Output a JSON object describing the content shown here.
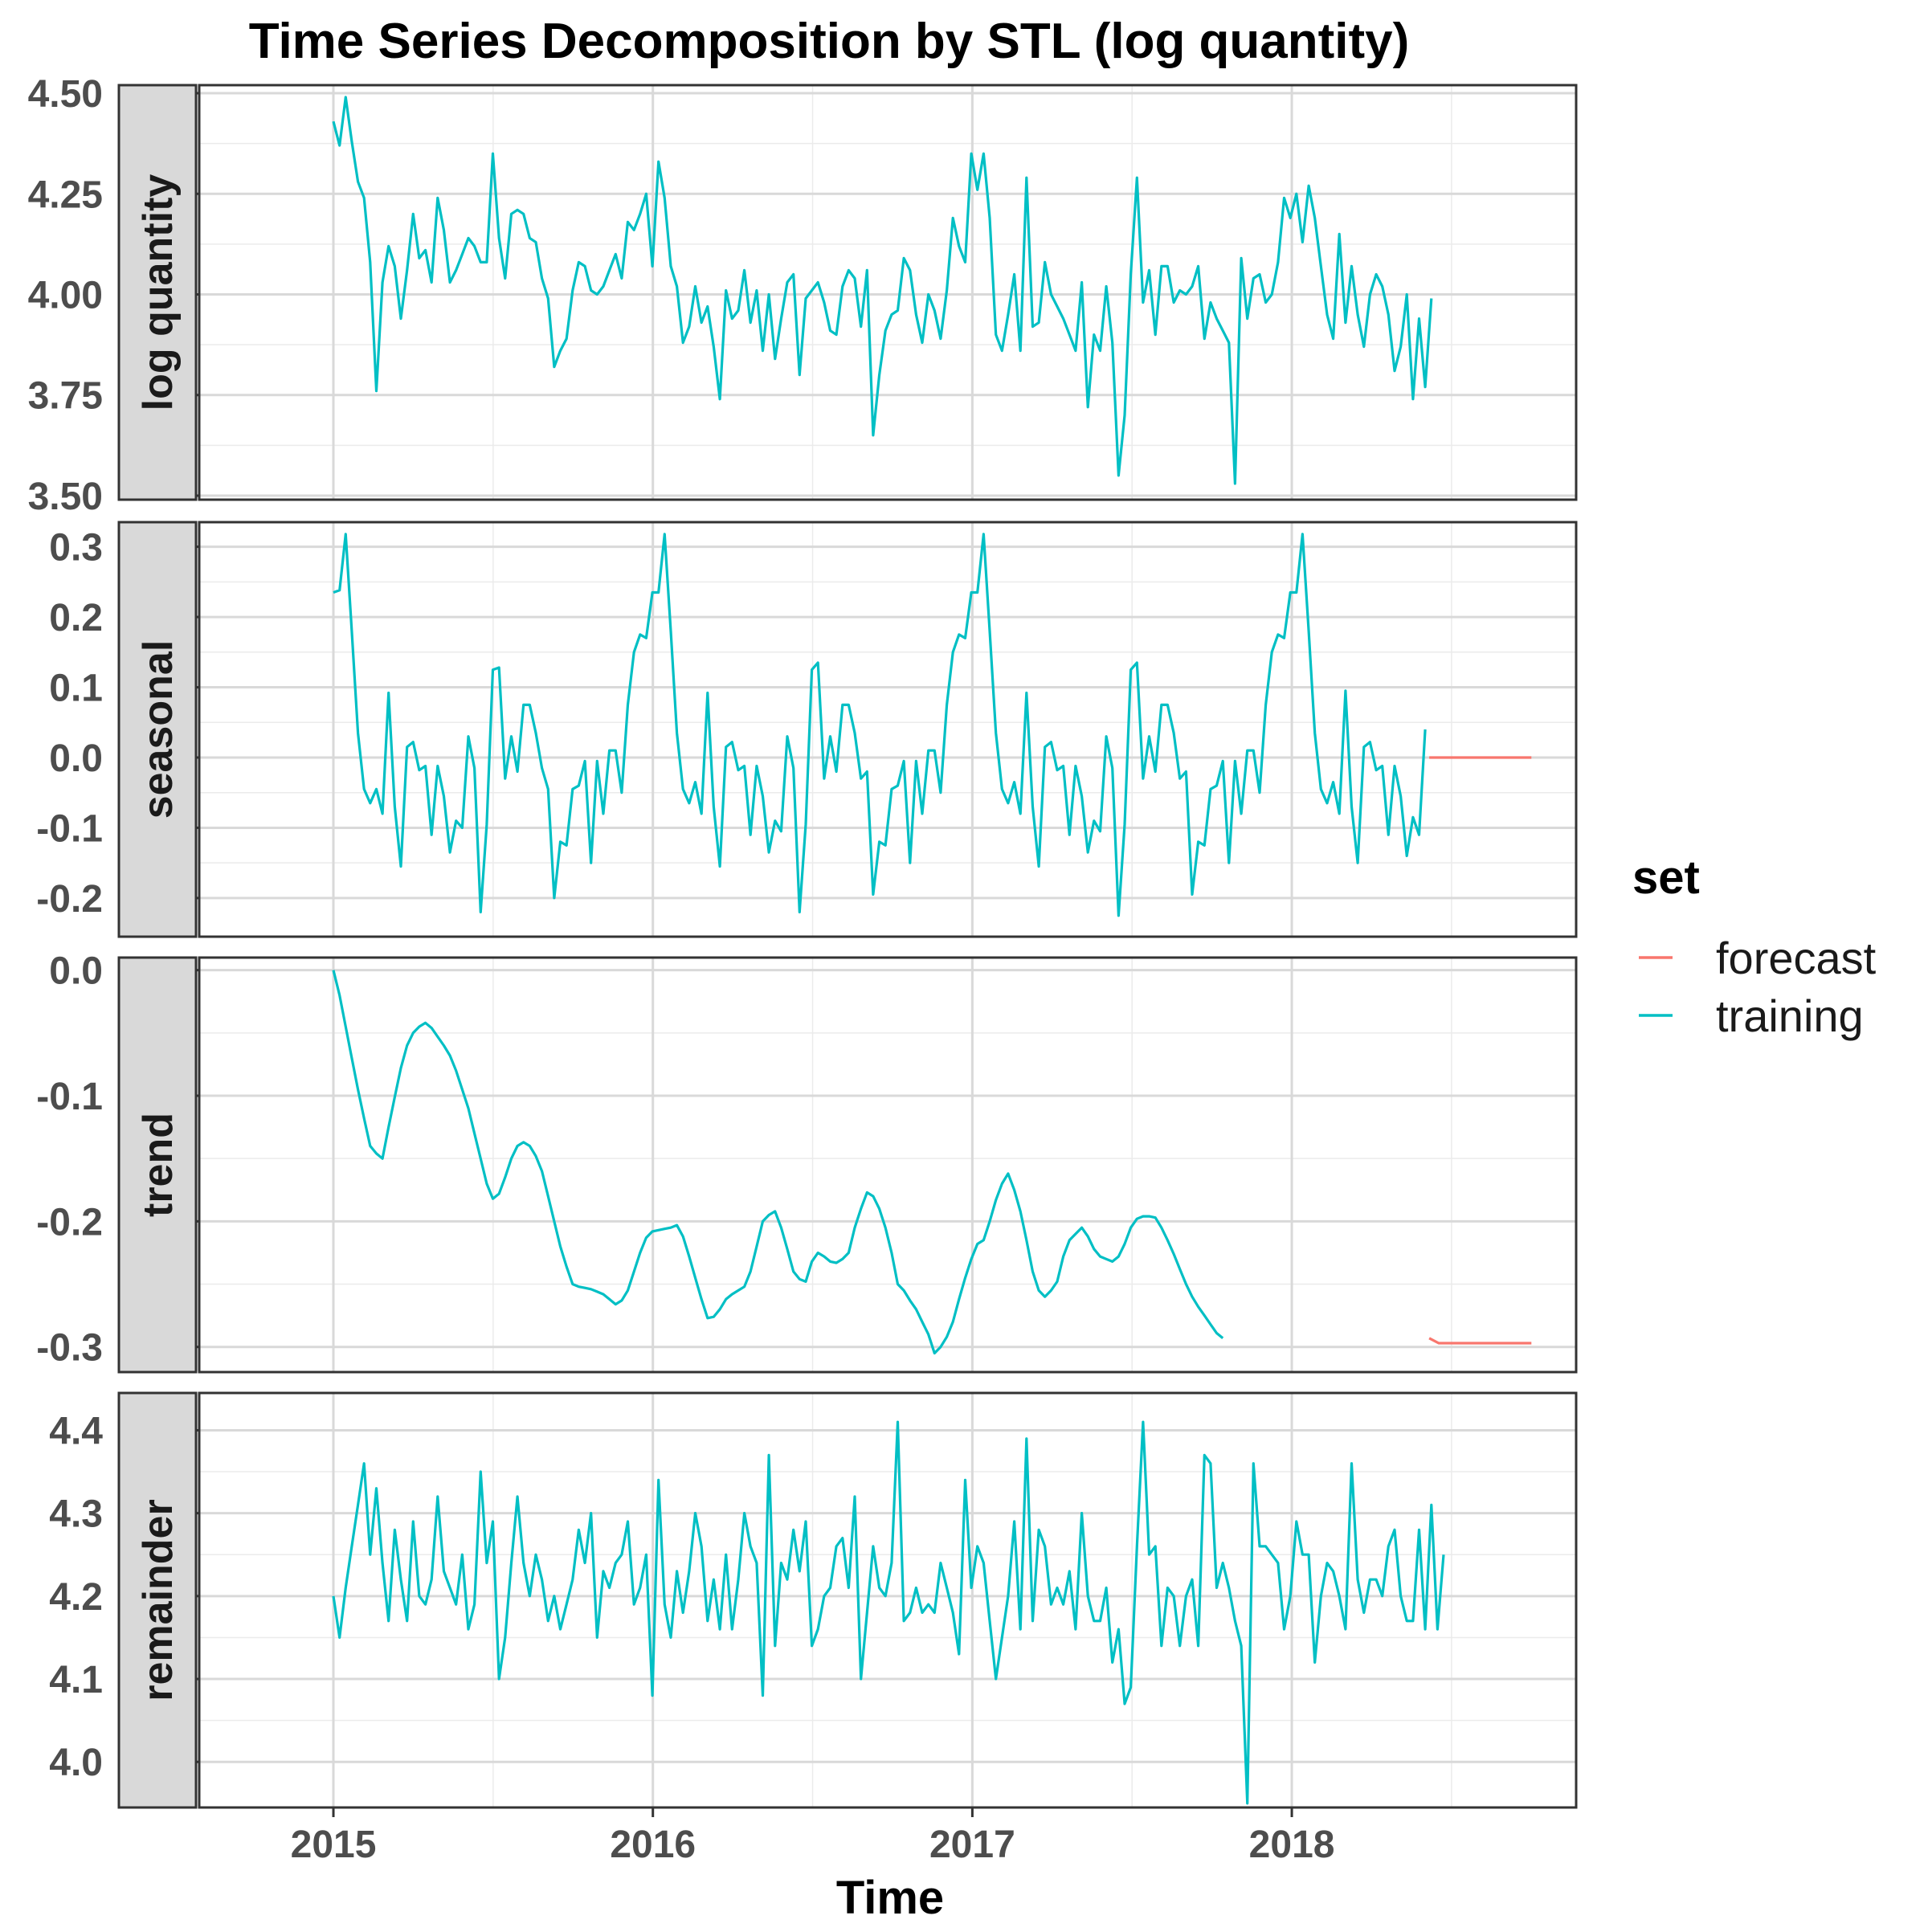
{
  "chart_data": {
    "type": "line",
    "title": "Time Series Decomposition by STL (log quantity)",
    "xlabel": "Time",
    "ylabel": "",
    "x_ticks": [
      "2015",
      "2016",
      "2017",
      "2018"
    ],
    "x_range": [
      2014.58,
      2018.89
    ],
    "grid": true,
    "legend": {
      "title": "set",
      "placement": "right",
      "entries": [
        {
          "name": "forecast",
          "color": "#F8766D"
        },
        {
          "name": "training",
          "color": "#00BFC4"
        }
      ]
    },
    "series_colors": {
      "training": "#00BFC4",
      "forecast": "#F8766D"
    },
    "panels": [
      {
        "name": "log quantity",
        "ylim": [
          3.49,
          4.52
        ],
        "y_ticks": [
          "3.50",
          "3.75",
          "4.00",
          "4.25",
          "4.50"
        ],
        "y_tick_values": [
          3.5,
          3.75,
          4.0,
          4.25,
          4.5
        ],
        "training": {
          "x_start": 2015.0,
          "x_step": 0.0192,
          "values": [
            4.43,
            4.37,
            4.49,
            4.38,
            4.28,
            4.24,
            4.08,
            3.76,
            4.03,
            4.12,
            4.07,
            3.94,
            4.06,
            4.2,
            4.09,
            4.11,
            4.03,
            4.24,
            4.16,
            4.03,
            4.06,
            4.1,
            4.14,
            4.12,
            4.08,
            4.08,
            4.35,
            4.14,
            4.04,
            4.2,
            4.21,
            4.2,
            4.14,
            4.13,
            4.04,
            3.99,
            3.82,
            3.86,
            3.89,
            4.01,
            4.08,
            4.07,
            4.01,
            4.0,
            4.02,
            4.06,
            4.1,
            4.04,
            4.18,
            4.16,
            4.2,
            4.25,
            4.07,
            4.33,
            4.24,
            4.07,
            4.02,
            3.88,
            3.92,
            4.02,
            3.93,
            3.97,
            3.87,
            3.74,
            4.01,
            3.94,
            3.96,
            4.06,
            3.93,
            4.01,
            3.86,
            4.0,
            3.84,
            3.94,
            4.03,
            4.05,
            3.8,
            3.99,
            4.01,
            4.03,
            3.98,
            3.91,
            3.9,
            4.02,
            4.06,
            4.04,
            3.92,
            4.06,
            3.65,
            3.8,
            3.91,
            3.95,
            3.96,
            4.09,
            4.06,
            3.95,
            3.88,
            4.0,
            3.96,
            3.89,
            4.01,
            4.19,
            4.12,
            4.08,
            4.35,
            4.26,
            4.35,
            4.19,
            3.9,
            3.86,
            3.95,
            4.05,
            3.86,
            4.29,
            3.92,
            3.93,
            4.08,
            4.0,
            3.97,
            3.94,
            3.9,
            3.86,
            4.03,
            3.72,
            3.9,
            3.86,
            4.02,
            3.88,
            3.55,
            3.7,
            4.05,
            4.29,
            3.98,
            4.06,
            3.9,
            4.07,
            4.07,
            3.98,
            4.01,
            4.0,
            4.02,
            4.07,
            3.89,
            3.98,
            3.94,
            3.91,
            3.88,
            3.53,
            4.09,
            3.94,
            4.04,
            4.05,
            3.98,
            4.0,
            4.08,
            4.24,
            4.19,
            4.25,
            4.13,
            4.27,
            4.19,
            4.07,
            3.95,
            3.89,
            4.15,
            3.93,
            4.07,
            3.95,
            3.87,
            4.0,
            4.05,
            4.02,
            3.95,
            3.81,
            3.87,
            4.0,
            3.74,
            3.94,
            3.77,
            3.99
          ]
        },
        "forecast": null
      },
      {
        "name": "seasonal",
        "ylim": [
          -0.255,
          0.335
        ],
        "y_ticks": [
          "-0.2",
          "-0.1",
          "0.0",
          "0.1",
          "0.2",
          "0.3"
        ],
        "y_tick_values": [
          -0.2,
          -0.1,
          0.0,
          0.1,
          0.2,
          0.3
        ],
        "training": {
          "x_start": 2015.0,
          "x_step": 0.0192,
          "values": [
            0.235,
            0.238,
            0.318,
            0.18,
            0.035,
            -0.045,
            -0.065,
            -0.045,
            -0.08,
            0.092,
            -0.07,
            -0.155,
            0.015,
            0.022,
            -0.018,
            -0.012,
            -0.11,
            -0.012,
            -0.055,
            -0.135,
            -0.09,
            -0.1,
            0.03,
            -0.015,
            -0.22,
            -0.095,
            0.125,
            0.128,
            -0.03,
            0.03,
            -0.02,
            0.075,
            0.075,
            0.035,
            -0.015,
            -0.045,
            -0.2,
            -0.12,
            -0.125,
            -0.045,
            -0.04,
            -0.005,
            -0.15,
            -0.005,
            -0.08,
            0.01,
            0.01,
            -0.05,
            0.075,
            0.15,
            0.175,
            0.17,
            0.235,
            0.235,
            0.318,
            0.18,
            0.035,
            -0.045,
            -0.065,
            -0.035,
            -0.08,
            0.092,
            -0.07,
            -0.155,
            0.015,
            0.022,
            -0.018,
            -0.012,
            -0.11,
            -0.012,
            -0.055,
            -0.135,
            -0.09,
            -0.105,
            0.03,
            -0.015,
            -0.22,
            -0.095,
            0.125,
            0.135,
            -0.03,
            0.03,
            -0.02,
            0.075,
            0.075,
            0.035,
            -0.03,
            -0.02,
            -0.195,
            -0.12,
            -0.125,
            -0.045,
            -0.04,
            -0.005,
            -0.15,
            -0.005,
            -0.08,
            0.01,
            0.01,
            -0.05,
            0.075,
            0.15,
            0.175,
            0.17,
            0.235,
            0.235,
            0.318,
            0.18,
            0.035,
            -0.045,
            -0.065,
            -0.035,
            -0.08,
            0.092,
            -0.07,
            -0.155,
            0.015,
            0.022,
            -0.018,
            -0.012,
            -0.11,
            -0.012,
            -0.055,
            -0.135,
            -0.09,
            -0.105,
            0.03,
            -0.015,
            -0.225,
            -0.095,
            0.125,
            0.135,
            -0.03,
            0.03,
            -0.02,
            0.075,
            0.075,
            0.035,
            -0.03,
            -0.02,
            -0.195,
            -0.12,
            -0.125,
            -0.045,
            -0.04,
            -0.005,
            -0.15,
            -0.005,
            -0.08,
            0.01,
            0.01,
            -0.05,
            0.075,
            0.15,
            0.175,
            0.17,
            0.235,
            0.235,
            0.318,
            0.18,
            0.035,
            -0.045,
            -0.065,
            -0.035,
            -0.08,
            0.095,
            -0.07,
            -0.15,
            0.015,
            0.022,
            -0.018,
            -0.012,
            -0.11,
            -0.012,
            -0.055,
            -0.14,
            -0.085,
            -0.11,
            0.04
          ]
        },
        "forecast": {
          "x": [
            2018.43,
            2018.75
          ],
          "values": [
            0.0,
            0.0
          ]
        }
      },
      {
        "name": "trend",
        "ylim": [
          -0.32,
          0.01
        ],
        "y_ticks": [
          "-0.3",
          "-0.2",
          "-0.1",
          "0.0"
        ],
        "y_tick_values": [
          -0.3,
          -0.2,
          -0.1,
          0.0
        ],
        "training": {
          "x_start": 2015.0,
          "x_step": 0.0192,
          "values": [
            0.0,
            -0.02,
            -0.045,
            -0.07,
            -0.095,
            -0.118,
            -0.14,
            -0.146,
            -0.15,
            -0.125,
            -0.101,
            -0.078,
            -0.06,
            -0.05,
            -0.045,
            -0.042,
            -0.046,
            -0.053,
            -0.06,
            -0.068,
            -0.08,
            -0.095,
            -0.11,
            -0.13,
            -0.15,
            -0.17,
            -0.182,
            -0.178,
            -0.165,
            -0.15,
            -0.14,
            -0.137,
            -0.14,
            -0.148,
            -0.16,
            -0.18,
            -0.2,
            -0.22,
            -0.236,
            -0.25,
            -0.252,
            -0.253,
            -0.254,
            -0.256,
            -0.258,
            -0.262,
            -0.266,
            -0.263,
            -0.255,
            -0.24,
            -0.225,
            -0.213,
            -0.208,
            -0.207,
            -0.206,
            -0.205,
            -0.203,
            -0.212,
            -0.228,
            -0.245,
            -0.262,
            -0.277,
            -0.276,
            -0.27,
            -0.262,
            -0.258,
            -0.255,
            -0.252,
            -0.24,
            -0.22,
            -0.2,
            -0.195,
            -0.192,
            -0.205,
            -0.222,
            -0.24,
            -0.246,
            -0.248,
            -0.232,
            -0.225,
            -0.228,
            -0.232,
            -0.233,
            -0.23,
            -0.225,
            -0.205,
            -0.19,
            -0.177,
            -0.18,
            -0.19,
            -0.205,
            -0.225,
            -0.25,
            -0.255,
            -0.263,
            -0.27,
            -0.28,
            -0.29,
            -0.305,
            -0.3,
            -0.292,
            -0.28,
            -0.262,
            -0.245,
            -0.23,
            -0.218,
            -0.215,
            -0.2,
            -0.183,
            -0.17,
            -0.162,
            -0.175,
            -0.192,
            -0.215,
            -0.24,
            -0.255,
            -0.26,
            -0.255,
            -0.248,
            -0.228,
            -0.215,
            -0.21,
            -0.205,
            -0.212,
            -0.222,
            -0.228,
            -0.23,
            -0.232,
            -0.228,
            -0.218,
            -0.205,
            -0.198,
            -0.196,
            -0.196,
            -0.197,
            -0.205,
            -0.215,
            -0.226,
            -0.238,
            -0.25,
            -0.26,
            -0.268,
            -0.275,
            -0.282,
            -0.289,
            -0.293
          ]
        },
        "forecast": {
          "x": [
            2018.43,
            2018.46,
            2018.75
          ],
          "values": [
            -0.293,
            -0.297,
            -0.297
          ]
        }
      },
      {
        "name": "remainder",
        "ylim": [
          3.945,
          4.445
        ],
        "y_ticks": [
          "4.0",
          "4.1",
          "4.2",
          "4.3",
          "4.4"
        ],
        "y_tick_values": [
          4.0,
          4.1,
          4.2,
          4.3,
          4.4
        ],
        "training": {
          "x_start": 2015.0,
          "x_step": 0.0192,
          "values": [
            4.2,
            4.15,
            4.21,
            4.26,
            4.31,
            4.36,
            4.25,
            4.33,
            4.24,
            4.17,
            4.28,
            4.22,
            4.17,
            4.29,
            4.2,
            4.19,
            4.22,
            4.32,
            4.23,
            4.21,
            4.19,
            4.25,
            4.16,
            4.19,
            4.35,
            4.24,
            4.29,
            4.1,
            4.15,
            4.24,
            4.32,
            4.24,
            4.2,
            4.25,
            4.22,
            4.17,
            4.2,
            4.16,
            4.19,
            4.22,
            4.28,
            4.24,
            4.3,
            4.15,
            4.23,
            4.21,
            4.24,
            4.25,
            4.29,
            4.19,
            4.21,
            4.25,
            4.08,
            4.34,
            4.19,
            4.15,
            4.23,
            4.18,
            4.23,
            4.3,
            4.26,
            4.17,
            4.22,
            4.16,
            4.25,
            4.16,
            4.22,
            4.3,
            4.26,
            4.24,
            4.08,
            4.37,
            4.14,
            4.24,
            4.22,
            4.28,
            4.23,
            4.29,
            4.14,
            4.16,
            4.2,
            4.21,
            4.26,
            4.27,
            4.21,
            4.32,
            4.1,
            4.18,
            4.26,
            4.21,
            4.2,
            4.24,
            4.41,
            4.17,
            4.18,
            4.21,
            4.18,
            4.19,
            4.18,
            4.24,
            4.21,
            4.18,
            4.13,
            4.34,
            4.21,
            4.26,
            4.24,
            4.17,
            4.1,
            4.15,
            4.2,
            4.29,
            4.16,
            4.39,
            4.17,
            4.28,
            4.26,
            4.19,
            4.21,
            4.19,
            4.23,
            4.16,
            4.3,
            4.2,
            4.17,
            4.17,
            4.21,
            4.12,
            4.16,
            4.07,
            4.09,
            4.26,
            4.41,
            4.25,
            4.26,
            4.14,
            4.21,
            4.2,
            4.14,
            4.2,
            4.22,
            4.14,
            4.37,
            4.36,
            4.21,
            4.24,
            4.21,
            4.17,
            4.14,
            3.95,
            4.36,
            4.26,
            4.26,
            4.25,
            4.24,
            4.16,
            4.2,
            4.29,
            4.25,
            4.25,
            4.12,
            4.2,
            4.24,
            4.23,
            4.2,
            4.16,
            4.36,
            4.22,
            4.18,
            4.22,
            4.22,
            4.2,
            4.26,
            4.28,
            4.2,
            4.17,
            4.17,
            4.28,
            4.16,
            4.31,
            4.16,
            4.25
          ]
        },
        "forecast": null
      }
    ]
  }
}
